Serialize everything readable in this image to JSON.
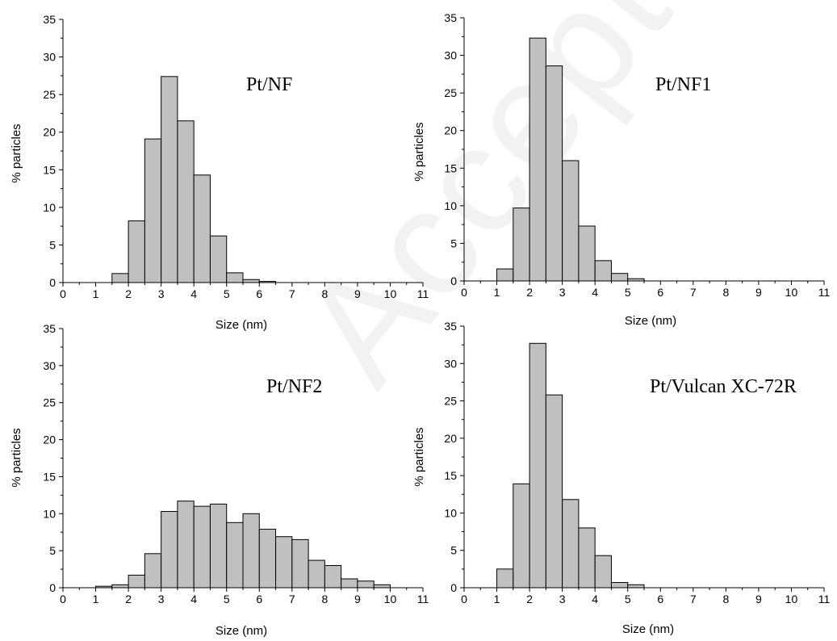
{
  "watermark": "Accepted Manuscript",
  "chart_data": [
    {
      "type": "bar",
      "title": "Pt/NF",
      "xlabel": "Size (nm)",
      "ylabel": "% particles",
      "xlim": [
        0,
        11
      ],
      "ylim": [
        0,
        35
      ],
      "xticks": [
        0,
        1,
        2,
        3,
        4,
        5,
        6,
        7,
        8,
        9,
        10,
        11
      ],
      "yticks": [
        0,
        5,
        10,
        15,
        20,
        25,
        30,
        35
      ],
      "bin_width": 0.5,
      "bin_starts": [
        1.5,
        2.0,
        2.5,
        3.0,
        3.5,
        4.0,
        4.5,
        5.0,
        5.5,
        6.0
      ],
      "values": [
        1.2,
        8.2,
        19.1,
        27.4,
        21.5,
        14.3,
        6.2,
        1.3,
        0.4,
        0.15
      ],
      "bar_color": "#c0c0c0"
    },
    {
      "type": "bar",
      "title": "Pt/NF1",
      "xlabel": "Size (nm)",
      "ylabel": "% particles",
      "xlim": [
        0,
        11
      ],
      "ylim": [
        0,
        35
      ],
      "xticks": [
        0,
        1,
        2,
        3,
        4,
        5,
        6,
        7,
        8,
        9,
        10,
        11
      ],
      "yticks": [
        0,
        5,
        10,
        15,
        20,
        25,
        30,
        35
      ],
      "bin_width": 0.5,
      "bin_starts": [
        1.0,
        1.5,
        2.0,
        2.5,
        3.0,
        3.5,
        4.0,
        4.5,
        5.0
      ],
      "values": [
        1.6,
        9.7,
        32.3,
        28.6,
        16.0,
        7.3,
        2.7,
        1.0,
        0.3
      ],
      "bar_color": "#c0c0c0"
    },
    {
      "type": "bar",
      "title": "Pt/NF2",
      "xlabel": "Size (nm)",
      "ylabel": "% particles",
      "xlim": [
        0,
        11
      ],
      "ylim": [
        0,
        35
      ],
      "xticks": [
        0,
        1,
        2,
        3,
        4,
        5,
        6,
        7,
        8,
        9,
        10,
        11
      ],
      "yticks": [
        0,
        5,
        10,
        15,
        20,
        25,
        30,
        35
      ],
      "bin_width": 0.5,
      "bin_starts": [
        1.0,
        1.5,
        2.0,
        2.5,
        3.0,
        3.5,
        4.0,
        4.5,
        5.0,
        5.5,
        6.0,
        6.5,
        7.0,
        7.5,
        8.0,
        8.5,
        9.0,
        9.5
      ],
      "values": [
        0.2,
        0.4,
        1.7,
        4.6,
        10.3,
        11.7,
        11.0,
        11.3,
        8.8,
        10.0,
        7.9,
        6.9,
        6.5,
        3.7,
        3.0,
        1.2,
        0.9,
        0.4
      ],
      "bar_color": "#c0c0c0"
    },
    {
      "type": "bar",
      "title": "Pt/Vulcan XC-72R",
      "xlabel": "Size (nm)",
      "ylabel": "% particles",
      "xlim": [
        0,
        11
      ],
      "ylim": [
        0,
        35
      ],
      "xticks": [
        0,
        1,
        2,
        3,
        4,
        5,
        6,
        7,
        8,
        9,
        10,
        11
      ],
      "yticks": [
        0,
        5,
        10,
        15,
        20,
        25,
        30,
        35
      ],
      "bin_width": 0.5,
      "bin_starts": [
        1.0,
        1.5,
        2.0,
        2.5,
        3.0,
        3.5,
        4.0,
        4.5,
        5.0
      ],
      "values": [
        2.5,
        13.9,
        32.7,
        25.8,
        11.8,
        8.0,
        4.3,
        0.7,
        0.4
      ],
      "bar_color": "#c0c0c0"
    }
  ]
}
